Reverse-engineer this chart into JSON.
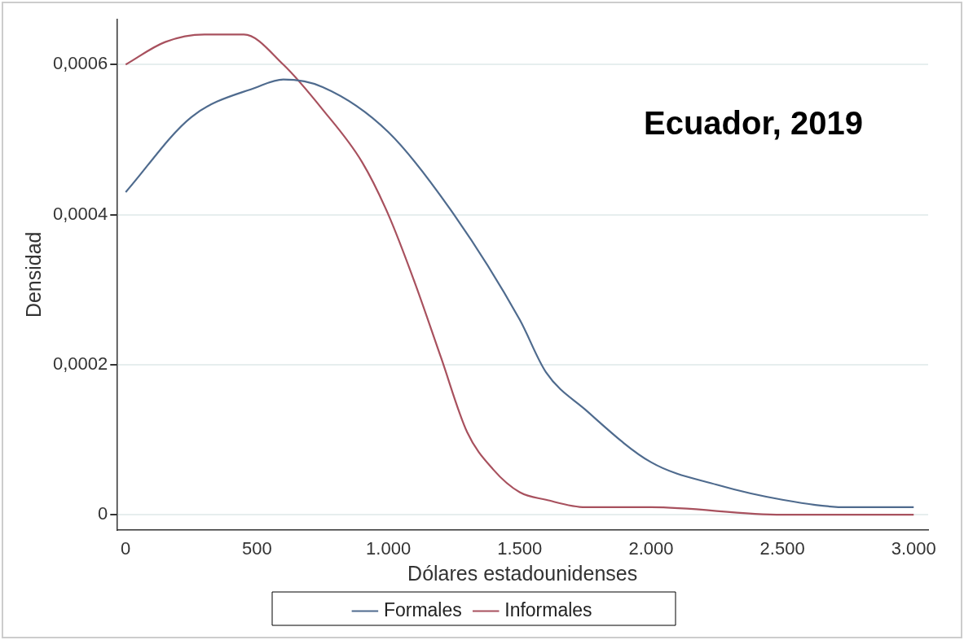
{
  "chart_data": {
    "type": "line",
    "xlabel": "Dólares estadounidenses",
    "ylabel": "Densidad",
    "annotations": [
      "Ecuador, 2019"
    ],
    "xlim": [
      -34,
      3055
    ],
    "ylim": [
      -2e-05,
      0.00066
    ],
    "xticks": [
      0,
      500,
      {
        "value": 1000,
        "label": "1.000"
      },
      {
        "value": 1500,
        "label": "1.500"
      },
      {
        "value": 2000,
        "label": "2.000"
      },
      {
        "value": 2500,
        "label": "2.500"
      },
      {
        "value": 3000,
        "label": "3.000"
      }
    ],
    "yticks": [
      0,
      {
        "value": 0.0002,
        "label": "0,0002"
      },
      {
        "value": 0.0004,
        "label": "0,0004"
      },
      {
        "value": 0.0006,
        "label": "0,0006"
      }
    ],
    "grid": "y",
    "legend": "bottom",
    "marker": "none",
    "line_style": "solid",
    "series": [
      {
        "name": "Formales",
        "color": "#4f6b8e",
        "x": [
          0,
          250,
          500,
          600,
          750,
          1000,
          1250,
          1500,
          1600,
          1750,
          2000,
          2250,
          2500,
          2750,
          3000
        ],
        "values": [
          0.00043,
          0.00053,
          0.00057,
          0.00058,
          0.00057,
          0.00051,
          0.0004,
          0.00026,
          0.00019,
          0.00014,
          7e-05,
          4e-05,
          2e-05,
          1e-05,
          1e-05
        ]
      },
      {
        "name": "Informales",
        "color": "#a8515e",
        "x": [
          0,
          150,
          300,
          450,
          600,
          750,
          900,
          1000,
          1100,
          1200,
          1300,
          1400,
          1500,
          1600,
          1750,
          2000,
          2500,
          3000
        ],
        "values": [
          0.0006,
          0.00063,
          0.00064,
          0.00064,
          0.0006,
          0.00054,
          0.00047,
          0.0004,
          0.00031,
          0.00021,
          0.00011,
          6e-05,
          3e-05,
          2e-05,
          1e-05,
          1e-05,
          0,
          0
        ]
      }
    ]
  }
}
